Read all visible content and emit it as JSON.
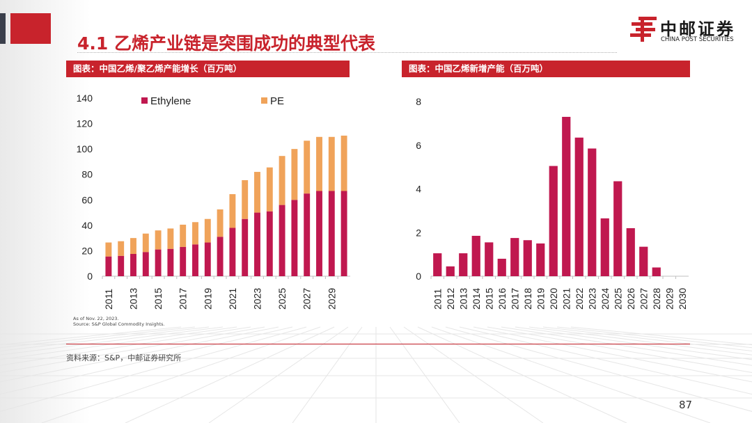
{
  "slide": {
    "title": "4.1 乙烯产业链是突围成功的典型代表",
    "page_number": "87",
    "source": "资料来源：S&P，中邮证券研究所",
    "brand_color": "#c8232c"
  },
  "logo": {
    "name_cn": "中邮证券",
    "name_en": "CHINA POST SECURITIES",
    "icon": "china-post-logo-icon"
  },
  "left_panel": {
    "header": "图表：中国乙烯/聚乙烯产能增长（百万吨）",
    "notes": [
      "As of Nov. 22, 2023.",
      "Source: S&P Global Commodity Insights."
    ]
  },
  "right_panel": {
    "header": "图表：中国乙烯新增产能（百万吨）"
  },
  "chart_data": [
    {
      "type": "bar",
      "stacked": true,
      "x": [
        2011,
        2012,
        2013,
        2014,
        2015,
        2016,
        2017,
        2018,
        2019,
        2020,
        2021,
        2022,
        2023,
        2024,
        2025,
        2026,
        2027,
        2028,
        2029,
        2030
      ],
      "xtick_labels": [
        "2011",
        "2013",
        "2015",
        "2017",
        "2019",
        "2021",
        "2023",
        "2025",
        "2027",
        "2029"
      ],
      "series": [
        {
          "name": "Ethylene",
          "color": "#c0184f",
          "values": [
            15.5,
            16,
            17.5,
            19,
            21,
            21.5,
            23,
            25,
            26.5,
            31,
            38,
            45,
            50,
            51,
            56,
            60,
            65,
            67,
            67,
            67
          ]
        },
        {
          "name": "PE",
          "color": "#f0a35a",
          "values": [
            11,
            11.5,
            12.5,
            14.5,
            15,
            16,
            17.5,
            17.5,
            18.5,
            21.5,
            26.5,
            30.5,
            32,
            34.5,
            38.5,
            40,
            41.5,
            42.5,
            42.5,
            43.5
          ]
        }
      ],
      "ylim": [
        0,
        140
      ],
      "yticks": [
        0,
        20,
        40,
        60,
        80,
        100,
        120,
        140
      ],
      "legend": "top",
      "grid": false
    },
    {
      "type": "bar",
      "categories": [
        "2011",
        "2012",
        "2013",
        "2014",
        "2015",
        "2016",
        "2017",
        "2018",
        "2019",
        "2020",
        "2021",
        "2022",
        "2023",
        "2024",
        "2025",
        "2026",
        "2027",
        "2028",
        "2029",
        "2030"
      ],
      "series": [
        {
          "color": "#c0184f",
          "values": [
            1.05,
            0.45,
            1.05,
            1.85,
            1.55,
            0.8,
            1.75,
            1.65,
            1.5,
            5.05,
            7.3,
            6.35,
            5.85,
            2.65,
            4.35,
            2.2,
            1.35,
            0.4,
            0,
            0
          ]
        }
      ],
      "ylim": [
        0,
        8
      ],
      "yticks": [
        0,
        2,
        4,
        6,
        8
      ],
      "grid": false
    }
  ]
}
